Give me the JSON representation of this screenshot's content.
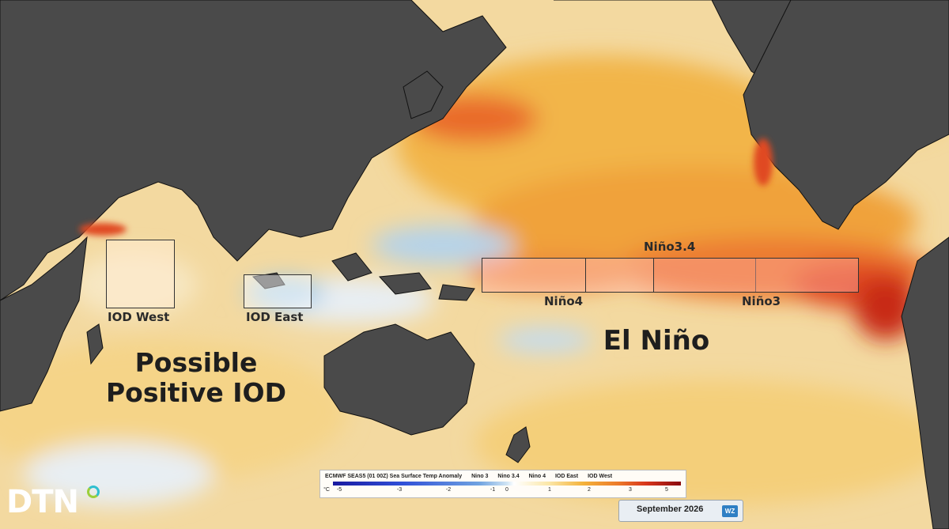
{
  "map": {
    "regions": {
      "iod_west": "IOD West",
      "iod_east": "IOD East",
      "nino4": "Niño4",
      "nino34": "Niño3.4",
      "nino3": "Niño3"
    },
    "annotations": {
      "iod_line1": "Possible",
      "iod_line2": "Positive IOD",
      "el_nino": "El Niño"
    },
    "colors": {
      "land": "#4a4a4a",
      "ocean_neutral": "#f4e3b0",
      "warm": "#f2b33a",
      "hot": "#e04820",
      "cool": "#a9cde8"
    }
  },
  "legend": {
    "title": "ECMWF SEAS5 (01 00Z) Sea Surface Temp Anomaly",
    "overlay_items": [
      "Nino 3",
      "Nino 3.4",
      "Nino 4",
      "IOD East",
      "IOD West"
    ],
    "unit": "°C",
    "ticks": [
      "-5",
      "-3",
      "-2",
      "-1",
      "0",
      "1",
      "2",
      "3",
      "5"
    ]
  },
  "date_label": "September 2026",
  "badge": "WZ",
  "logo": "DTN"
}
